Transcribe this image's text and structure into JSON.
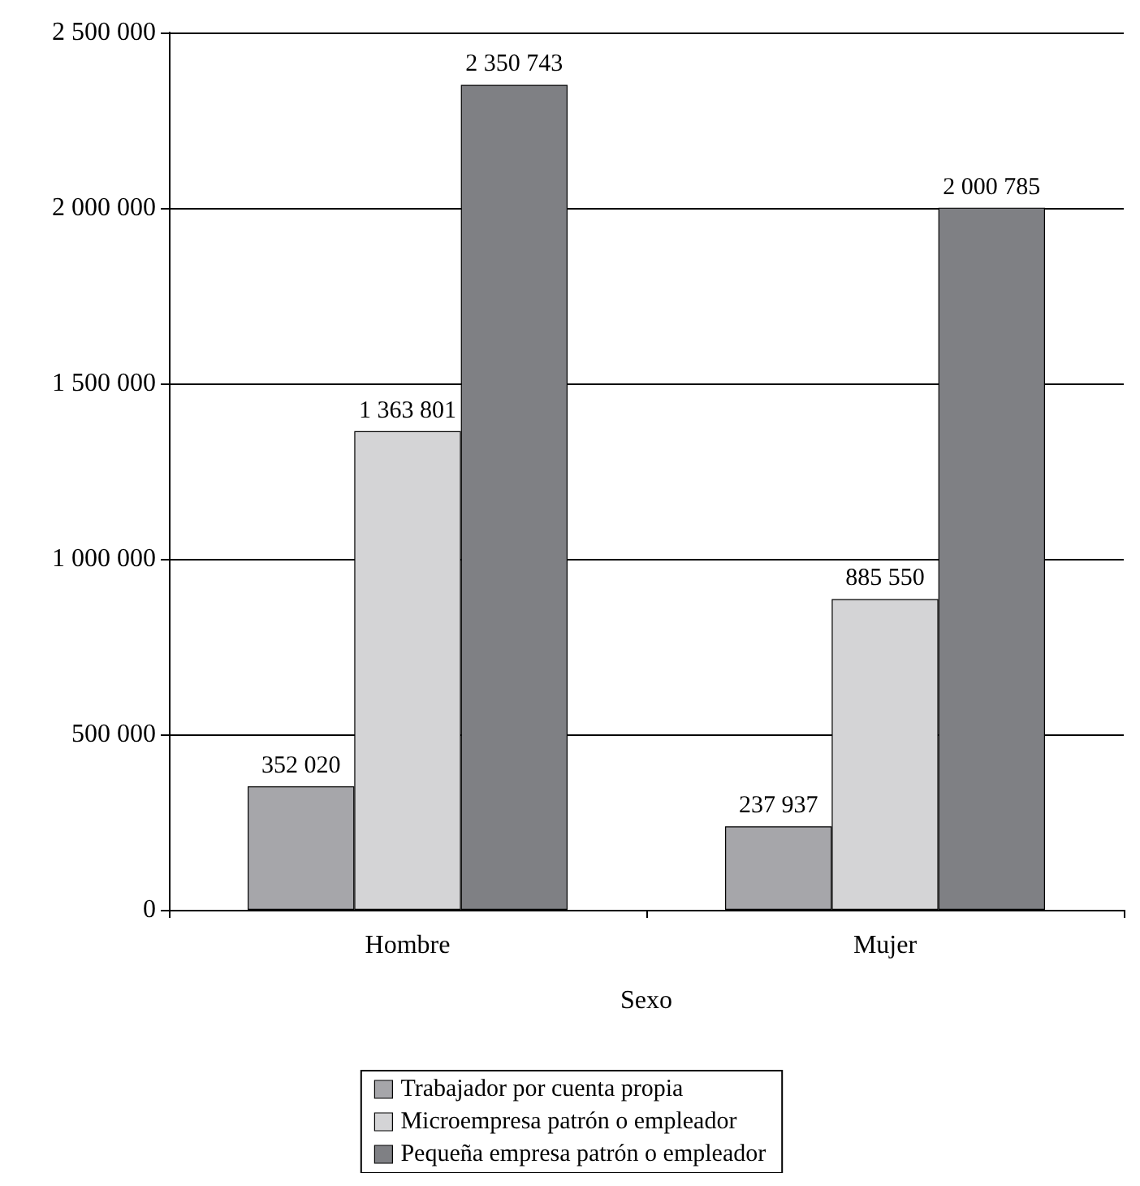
{
  "chart_data": {
    "type": "bar",
    "xlabel": "Sexo",
    "categories": [
      "Hombre",
      "Mujer"
    ],
    "series": [
      {
        "name": "Trabajador por cuenta propia",
        "color": "#a6a6aa",
        "values": [
          352020,
          237937
        ],
        "value_labels": [
          "352 020",
          "237 937"
        ]
      },
      {
        "name": "Microempresa patrón o empleador",
        "color": "#d4d4d6",
        "values": [
          1363801,
          885550
        ],
        "value_labels": [
          "1 363 801",
          "885 550"
        ]
      },
      {
        "name": "Pequeña empresa patrón o empleador",
        "color": "#7f8084",
        "values": [
          2350743,
          2000785
        ],
        "value_labels": [
          "2 350 743",
          "2 000 785"
        ]
      }
    ],
    "ylim": [
      0,
      2500000
    ],
    "yticks": [
      {
        "value": 0,
        "label": "0"
      },
      {
        "value": 500000,
        "label": "500 000"
      },
      {
        "value": 1000000,
        "label": "1 000 000"
      },
      {
        "value": 1500000,
        "label": "1 500 000"
      },
      {
        "value": 2000000,
        "label": "2 000 000"
      },
      {
        "value": 2500000,
        "label": "2 500 000"
      }
    ],
    "grid": "y",
    "legend": "bottom"
  }
}
